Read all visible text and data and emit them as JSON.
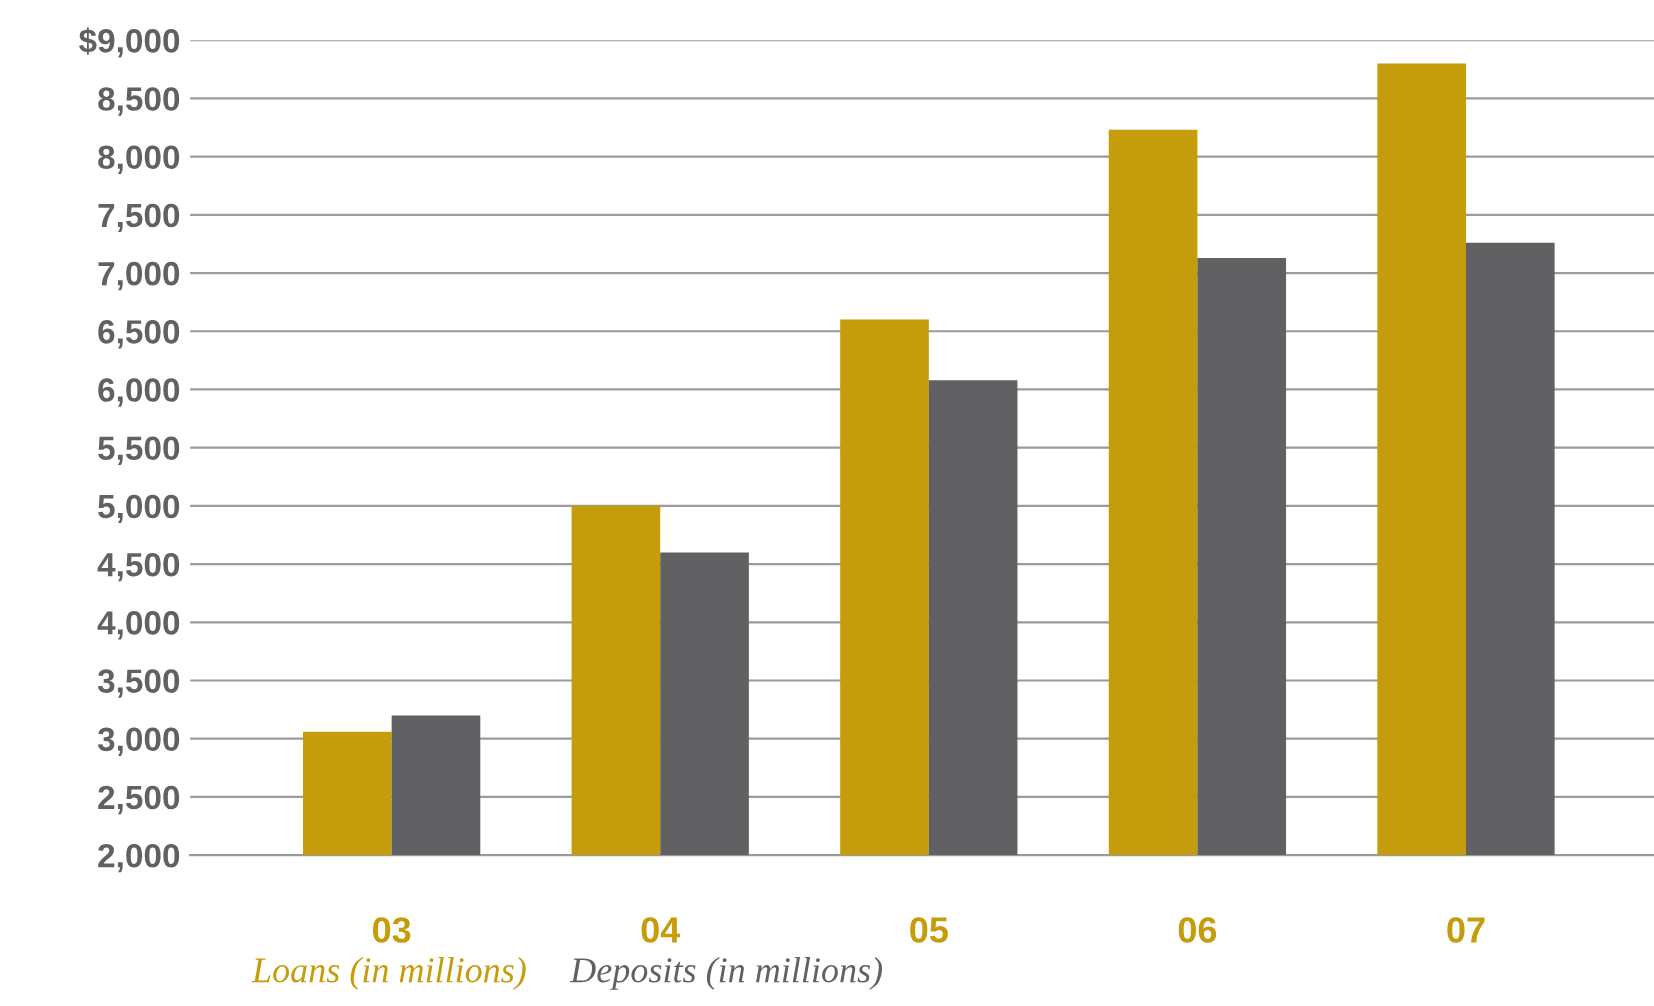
{
  "chart_data": {
    "type": "bar",
    "categories": [
      "03",
      "04",
      "05",
      "06",
      "07"
    ],
    "series": [
      {
        "name": "Loans (in millions)",
        "color": "#c49c0c",
        "values": [
          3060,
          5000,
          6600,
          8230,
          8800
        ]
      },
      {
        "name": "Deposits (in millions)",
        "color": "#616163",
        "values": [
          3200,
          4600,
          6080,
          7130,
          7260
        ]
      }
    ],
    "ylim": [
      2000,
      9000
    ],
    "yticks": [
      {
        "value": 2000,
        "label": "2,000"
      },
      {
        "value": 2500,
        "label": "2,500"
      },
      {
        "value": 3000,
        "label": "3,000"
      },
      {
        "value": 3500,
        "label": "3,500"
      },
      {
        "value": 4000,
        "label": "4,000"
      },
      {
        "value": 4500,
        "label": "4,500"
      },
      {
        "value": 5000,
        "label": "5,000"
      },
      {
        "value": 5500,
        "label": "5,500"
      },
      {
        "value": 6000,
        "label": "6,000"
      },
      {
        "value": 6500,
        "label": "6,500"
      },
      {
        "value": 7000,
        "label": "7,000"
      },
      {
        "value": 7500,
        "label": "7,500"
      },
      {
        "value": 8000,
        "label": "8,000"
      },
      {
        "value": 8500,
        "label": "8,500"
      },
      {
        "value": 9000,
        "label": "$9,000"
      }
    ],
    "grid": "y",
    "legend": "bottom"
  }
}
